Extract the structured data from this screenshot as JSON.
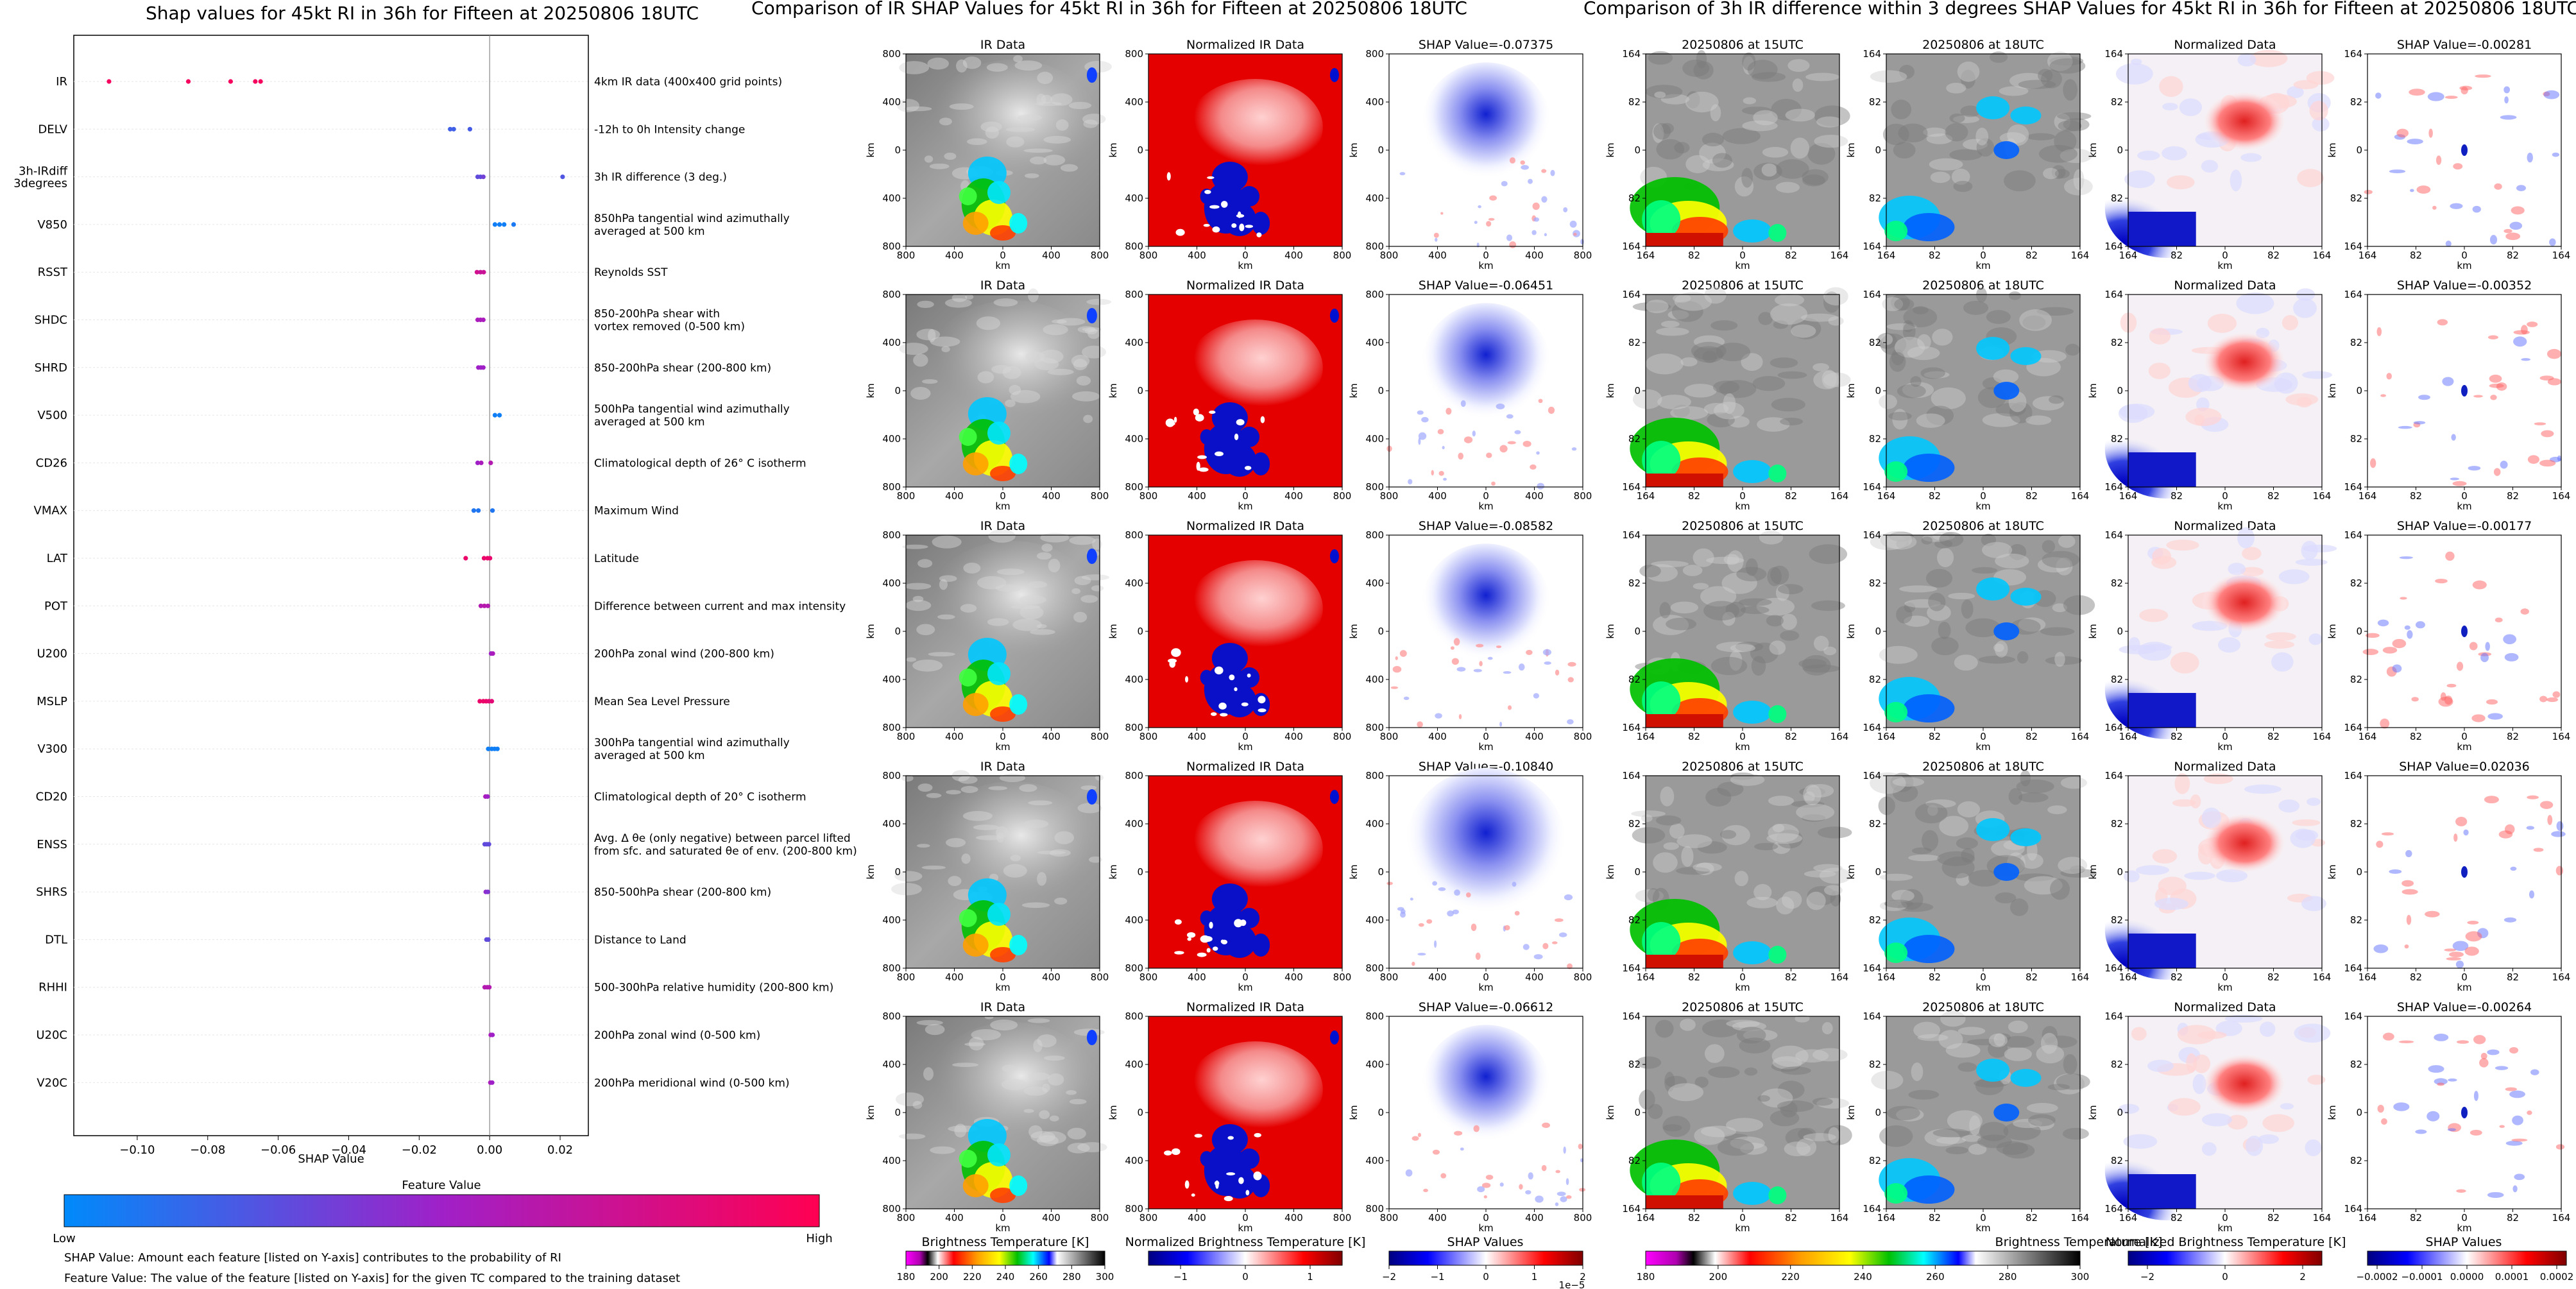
{
  "shap": {
    "title": "Shap values for 45kt RI in 36h for Fifteen at 20250806 18UTC",
    "xlabel": "SHAP Value",
    "colorbar_title": "Feature Value",
    "colorbar_low": "Low",
    "colorbar_high": "High",
    "note1": "SHAP Value: Amount each feature [listed on Y-axis] contributes to the probability of RI",
    "note2": "Feature Value: The value of the feature [listed on Y-axis] for the given TC compared to the training dataset"
  },
  "ir_panel": {
    "title": "Comparison of IR SHAP Values for 45kt RI in 36h for Fifteen at 20250806 18UTC",
    "col_titles": [
      "IR Data",
      "Normalized IR Data"
    ],
    "shap_titles": [
      "SHAP Value=-0.07375",
      "SHAP Value=-0.06451",
      "SHAP Value=-0.08582",
      "SHAP Value=-0.10840",
      "SHAP Value=-0.06612"
    ],
    "axis_label": "km",
    "ticks": [
      "800",
      "400",
      "0",
      "400",
      "800"
    ],
    "cb1_label": "Brightness Temperature [K]",
    "cb1_ticks": [
      "180",
      "200",
      "220",
      "240",
      "260",
      "280",
      "300"
    ],
    "cb2_label": "Normalized Brightness Temperature [K]",
    "cb2_ticks": [
      "−1",
      "0",
      "1"
    ],
    "cb3_label": "SHAP Values",
    "cb3_ticks": [
      "−2",
      "−1",
      "0",
      "1",
      "2"
    ],
    "cb3_exp": "1e−5"
  },
  "diff_panel": {
    "title": "Comparison of 3h IR difference within 3 degrees SHAP Values for 45kt RI in 36h for Fifteen at 20250806 18UTC",
    "col_titles": [
      "20250806 at 15UTC",
      "20250806 at 18UTC",
      "Normalized Data"
    ],
    "shap_titles": [
      "SHAP Value=-0.00281",
      "SHAP Value=-0.00352",
      "SHAP Value=-0.00177",
      "SHAP Value=0.02036",
      "SHAP Value=-0.00264"
    ],
    "axis_label": "km",
    "ticks": [
      "164",
      "82",
      "0",
      "82",
      "164"
    ],
    "cb1_label": "Brightness Temperature [K]",
    "cb1_ticks": [
      "180",
      "200",
      "220",
      "240",
      "260",
      "280",
      "300"
    ],
    "cb2_label": "Normalized Brightness Temperature [K]",
    "cb2_ticks": [
      "−2",
      "0",
      "2"
    ],
    "cb3_label": "SHAP Values",
    "cb3_ticks": [
      "−0.0002",
      "−0.0001",
      "0.0000",
      "0.0001",
      "0.0002"
    ]
  },
  "chart_data": {
    "type": "scatter",
    "title": "Shap values for 45kt RI in 36h for Fifteen at 20250806 18UTC",
    "xlabel": "SHAP Value",
    "xlim": [
      -0.118,
      0.028
    ],
    "xticks": [
      -0.1,
      -0.08,
      -0.06,
      -0.04,
      -0.02,
      0.0,
      0.02
    ],
    "xtick_labels": [
      "−0.10",
      "−0.08",
      "−0.06",
      "−0.04",
      "−0.02",
      "0.00",
      "0.02"
    ],
    "colors": {
      "low": "#008afb",
      "mid": "#a020c8",
      "high": "#ff0052"
    },
    "features": [
      {
        "name": "IR",
        "desc": "4km IR data (400x400 grid points)",
        "points": [
          [
            -0.108,
            0.95
          ],
          [
            -0.0855,
            0.95
          ],
          [
            -0.0735,
            0.95
          ],
          [
            -0.0665,
            0.95
          ],
          [
            -0.065,
            0.95
          ]
        ]
      },
      {
        "name": "DELV",
        "desc": "-12h to 0h Intensity change",
        "points": [
          [
            -0.0112,
            0.2
          ],
          [
            -0.0102,
            0.2
          ],
          [
            -0.0056,
            0.22
          ]
        ]
      },
      {
        "name": "3h-IRdiff\n3degrees",
        "desc": "3h IR difference (3 deg.)",
        "points": [
          [
            -0.0034,
            0.3
          ],
          [
            -0.0026,
            0.3
          ],
          [
            -0.0018,
            0.35
          ],
          [
            0.0207,
            0.25
          ]
        ]
      },
      {
        "name": "V850",
        "desc": "850hPa tangential wind azimuthally\naveraged at 500 km",
        "points": [
          [
            0.0015,
            0.05
          ],
          [
            0.0028,
            0.05
          ],
          [
            0.0041,
            0.05
          ],
          [
            0.0068,
            0.08
          ]
        ]
      },
      {
        "name": "RSST",
        "desc": "Reynolds SST",
        "points": [
          [
            -0.0036,
            0.75
          ],
          [
            -0.0026,
            0.7
          ],
          [
            -0.0017,
            0.72
          ]
        ]
      },
      {
        "name": "SHDC",
        "desc": "850-200hPa shear with\nvortex removed (0-500 km)",
        "points": [
          [
            -0.0034,
            0.55
          ],
          [
            -0.0026,
            0.55
          ],
          [
            -0.0018,
            0.55
          ]
        ]
      },
      {
        "name": "SHRD",
        "desc": "850-200hPa shear (200-800 km)",
        "points": [
          [
            -0.0032,
            0.5
          ],
          [
            -0.0025,
            0.5
          ],
          [
            -0.0018,
            0.5
          ]
        ]
      },
      {
        "name": "V500",
        "desc": "500hPa tangential wind azimuthally\naveraged at 500 km",
        "points": [
          [
            0.0015,
            0.05
          ],
          [
            0.0028,
            0.05
          ]
        ]
      },
      {
        "name": "CD26",
        "desc": "Climatological depth of 26° C isotherm",
        "points": [
          [
            -0.0034,
            0.5
          ],
          [
            -0.0024,
            0.55
          ],
          [
            0.0003,
            0.6
          ]
        ]
      },
      {
        "name": "VMAX",
        "desc": "Maximum Wind",
        "points": [
          [
            -0.0045,
            0.1
          ],
          [
            -0.0032,
            0.1
          ],
          [
            0.0008,
            0.1
          ]
        ]
      },
      {
        "name": "LAT",
        "desc": "Latitude",
        "points": [
          [
            -0.0068,
            0.9
          ],
          [
            -0.0016,
            0.9
          ],
          [
            -0.0006,
            0.9
          ],
          [
            0.0001,
            0.88
          ]
        ]
      },
      {
        "name": "POT",
        "desc": "Difference between current and max intensity",
        "points": [
          [
            -0.0025,
            0.6
          ],
          [
            -0.0015,
            0.62
          ],
          [
            -0.0005,
            0.6
          ]
        ]
      },
      {
        "name": "U200",
        "desc": "200hPa zonal wind (200-800 km)",
        "points": [
          [
            0.0004,
            0.5
          ],
          [
            0.0009,
            0.55
          ]
        ]
      },
      {
        "name": "MSLP",
        "desc": "Mean Sea Level Pressure",
        "points": [
          [
            -0.0028,
            0.9
          ],
          [
            -0.0018,
            0.9
          ],
          [
            -0.001,
            0.9
          ],
          [
            -0.0002,
            0.85
          ],
          [
            0.0006,
            0.85
          ]
        ]
      },
      {
        "name": "V300",
        "desc": "300hPa tangential wind azimuthally\naveraged at 500 km",
        "points": [
          [
            -0.0004,
            0.05
          ],
          [
            0.0006,
            0.05
          ],
          [
            0.0014,
            0.05
          ],
          [
            0.0022,
            0.05
          ]
        ]
      },
      {
        "name": "CD20",
        "desc": "Climatological depth of 20° C isotherm",
        "points": [
          [
            -0.0012,
            0.55
          ],
          [
            -0.0006,
            0.5
          ]
        ]
      },
      {
        "name": "ENSS",
        "desc": "Avg. Δ θe (only negative) between parcel lifted\nfrom sfc. and saturated θe of env. (200-800 km)",
        "points": [
          [
            -0.0014,
            0.3
          ],
          [
            -0.0008,
            0.3
          ],
          [
            -0.0002,
            0.3
          ]
        ]
      },
      {
        "name": "SHRS",
        "desc": "850-500hPa shear (200-800 km)",
        "points": [
          [
            -0.0011,
            0.45
          ],
          [
            -0.0005,
            0.4
          ]
        ]
      },
      {
        "name": "DTL",
        "desc": "Distance to Land",
        "points": [
          [
            -0.0009,
            0.3
          ],
          [
            -0.0004,
            0.3
          ]
        ]
      },
      {
        "name": "RHHI",
        "desc": "500-300hPa relative humidity (200-800 km)",
        "points": [
          [
            -0.0014,
            0.6
          ],
          [
            -0.0007,
            0.6
          ],
          [
            -0.0001,
            0.6
          ]
        ]
      },
      {
        "name": "U20C",
        "desc": "200hPa zonal wind (0-500 km)",
        "points": [
          [
            0.0003,
            0.55
          ],
          [
            0.0008,
            0.5
          ]
        ]
      },
      {
        "name": "V20C",
        "desc": "200hPa meridional wind (0-500 km)",
        "points": [
          [
            0.0002,
            0.55
          ],
          [
            0.0007,
            0.5
          ]
        ]
      }
    ]
  }
}
